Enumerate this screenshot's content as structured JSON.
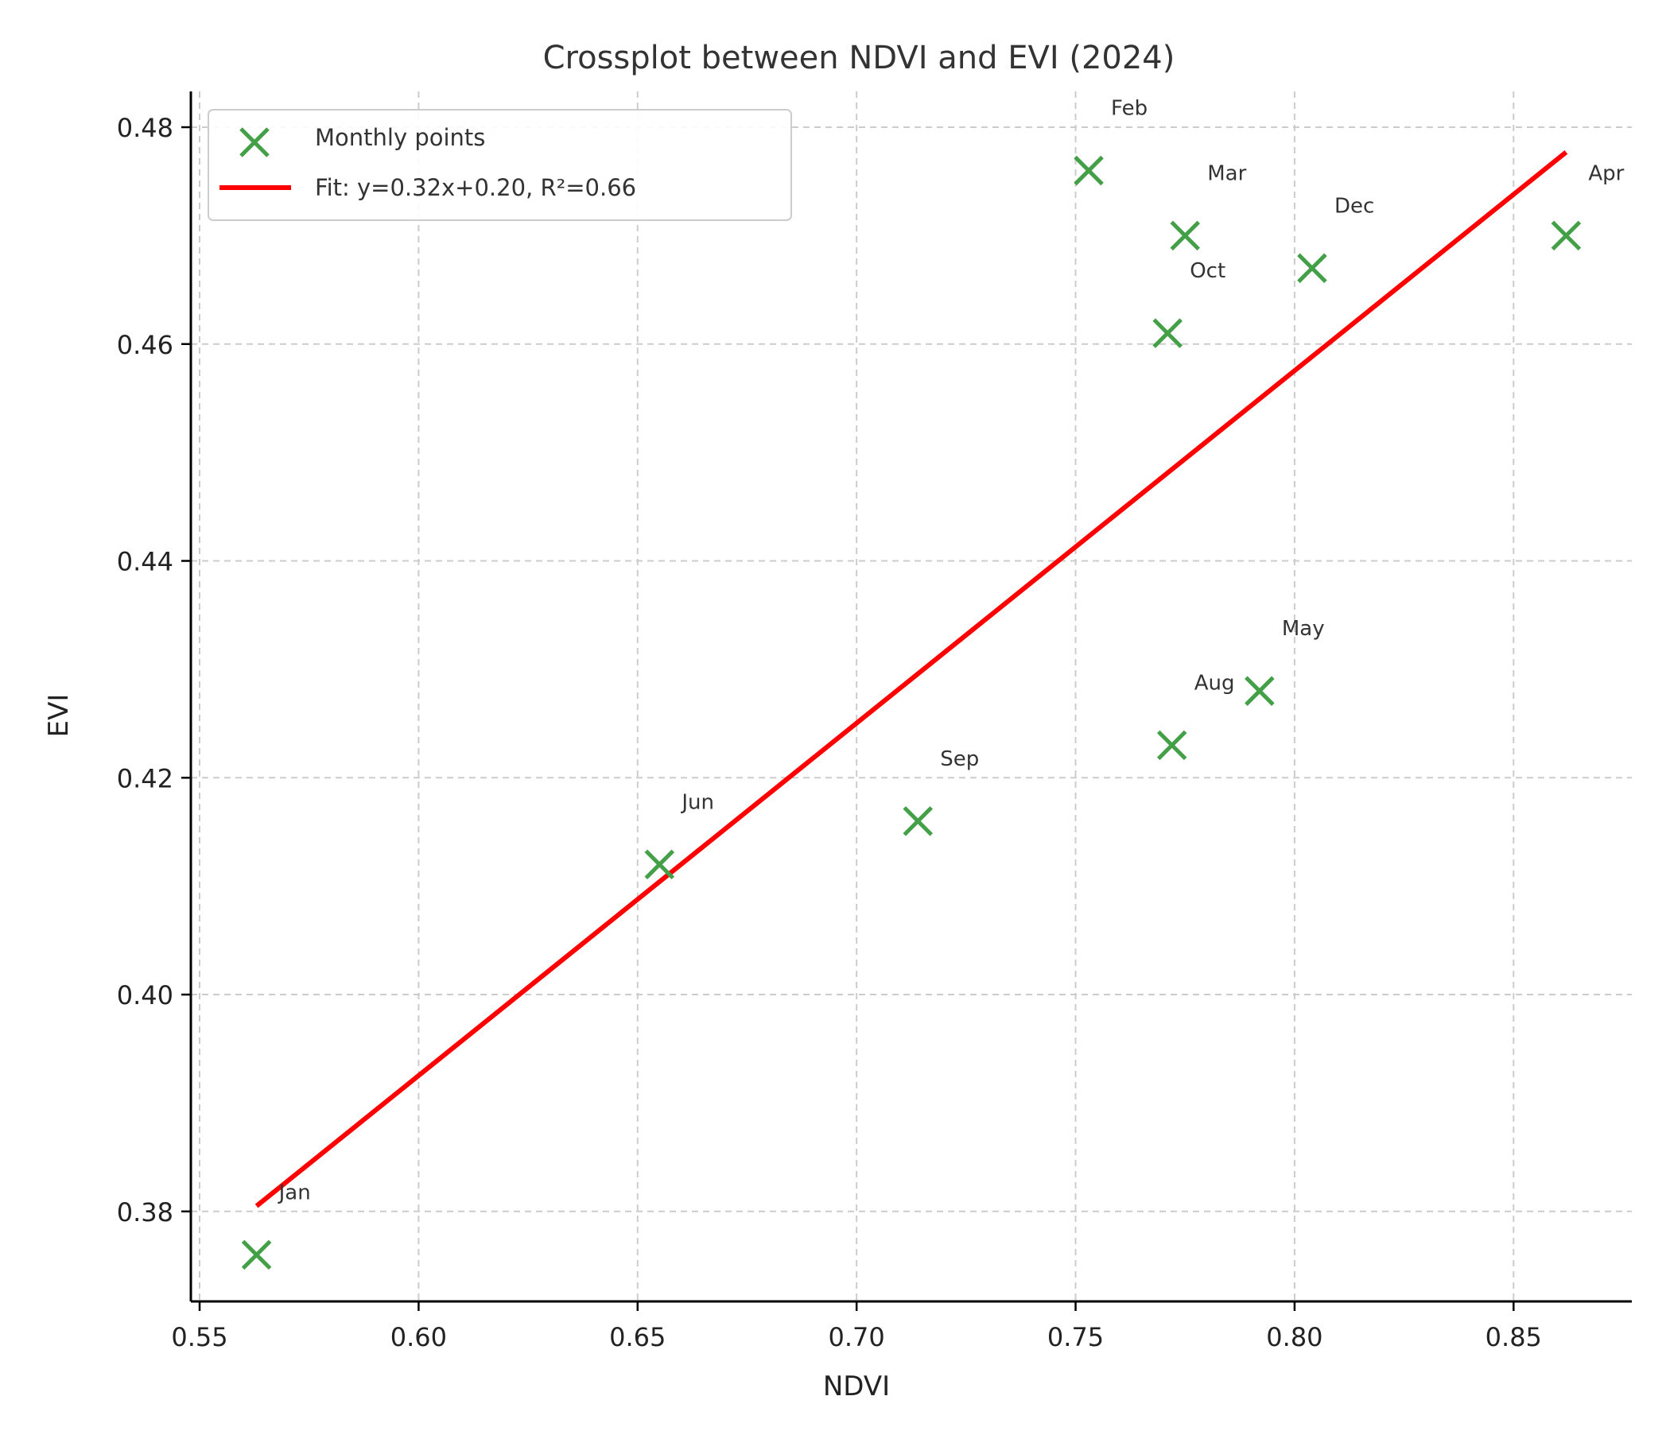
{
  "chart_data": {
    "type": "scatter",
    "title": "Crossplot between NDVI and EVI (2024)",
    "xlabel": "NDVI",
    "ylabel": "EVI",
    "xlim": [
      0.548,
      0.877
    ],
    "ylim": [
      0.3717,
      0.4833
    ],
    "x_ticks": [
      0.55,
      0.6,
      0.65,
      0.7,
      0.75,
      0.8,
      0.85
    ],
    "x_tick_labels": [
      "0.55",
      "0.60",
      "0.65",
      "0.70",
      "0.75",
      "0.80",
      "0.85"
    ],
    "y_ticks": [
      0.38,
      0.4,
      0.42,
      0.44,
      0.46,
      0.48
    ],
    "y_tick_labels": [
      "0.38",
      "0.40",
      "0.42",
      "0.44",
      "0.46",
      "0.48"
    ],
    "grid": true,
    "legend_position": "top-left",
    "series": [
      {
        "name": "Monthly points",
        "kind": "scatter",
        "marker": "x",
        "color": "#43a047",
        "points": [
          {
            "label": "Jan",
            "x": 0.563,
            "y": 0.376
          },
          {
            "label": "Feb",
            "x": 0.753,
            "y": 0.476
          },
          {
            "label": "Mar",
            "x": 0.775,
            "y": 0.47
          },
          {
            "label": "Apr",
            "x": 0.862,
            "y": 0.47
          },
          {
            "label": "May",
            "x": 0.792,
            "y": 0.428
          },
          {
            "label": "Jun",
            "x": 0.655,
            "y": 0.412
          },
          {
            "label": "Aug",
            "x": 0.772,
            "y": 0.423
          },
          {
            "label": "Sep",
            "x": 0.714,
            "y": 0.416
          },
          {
            "label": "Oct",
            "x": 0.771,
            "y": 0.461
          },
          {
            "label": "Dec",
            "x": 0.804,
            "y": 0.467
          }
        ]
      },
      {
        "name": "Fit: y=0.32x+0.20, R²=0.66",
        "kind": "line",
        "color": "#ff0000",
        "x": [
          0.563,
          0.862
        ],
        "y": [
          0.3805,
          0.4777
        ]
      }
    ]
  }
}
